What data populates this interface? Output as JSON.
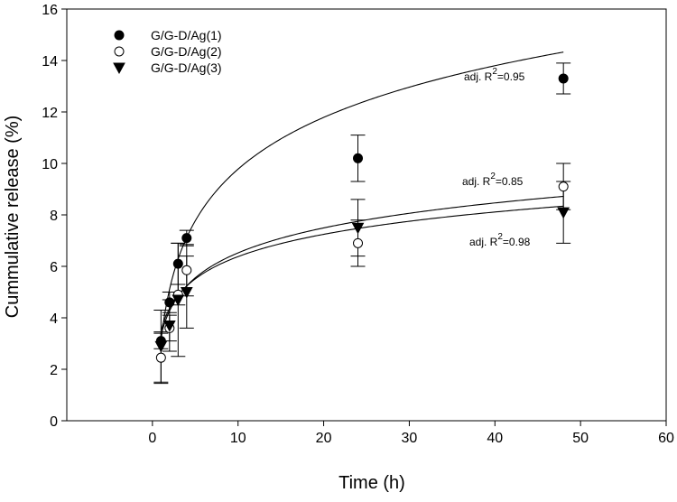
{
  "chart_data": {
    "type": "scatter",
    "title": "",
    "xlabel": "Time (h)",
    "ylabel": "Cummulative release (%)",
    "xlim": [
      -10,
      60
    ],
    "ylim": [
      0,
      16
    ],
    "x_ticks": [
      0,
      10,
      20,
      30,
      40,
      50,
      60
    ],
    "y_ticks": [
      0,
      2,
      4,
      6,
      8,
      10,
      12,
      14,
      16
    ],
    "grid": false,
    "legend_position": "top-left",
    "series": [
      {
        "name": "G/G-D/Ag(1)",
        "marker": "filled-circle",
        "x": [
          1,
          2,
          3,
          4,
          24,
          48
        ],
        "y": [
          3.1,
          4.6,
          6.1,
          7.1,
          10.2,
          13.3
        ],
        "err": [
          0.3,
          0.4,
          0.8,
          0.3,
          0.9,
          0.6
        ],
        "fit": {
          "a": 3.1,
          "b": 2.9,
          "annotation": "adj. R",
          "annotation_sup": "2",
          "annotation_value": "=0.95"
        }
      },
      {
        "name": "G/G-D/Ag(2)",
        "marker": "open-circle",
        "x": [
          1,
          2,
          3,
          4,
          24,
          48
        ],
        "y": [
          2.45,
          3.6,
          4.9,
          5.85,
          6.9,
          9.1
        ],
        "err": [
          1.0,
          0.5,
          0.4,
          1.0,
          0.9,
          0.9
        ],
        "fit": {
          "a": 3.3,
          "b": 1.4,
          "annotation": "adj. R",
          "annotation_sup": "2",
          "annotation_value": "=0.85"
        }
      },
      {
        "name": "G/G-D/Ag(3)",
        "marker": "filled-triangle-down",
        "x": [
          1,
          2,
          3,
          4,
          24,
          48
        ],
        "y": [
          2.9,
          3.7,
          4.7,
          5.0,
          7.5,
          8.1
        ],
        "err": [
          1.4,
          1.0,
          2.2,
          1.4,
          1.1,
          1.2
        ],
        "fit": {
          "a": 3.5,
          "b": 1.25,
          "annotation": "adj. R",
          "annotation_sup": "2",
          "annotation_value": "=0.98"
        }
      }
    ]
  }
}
